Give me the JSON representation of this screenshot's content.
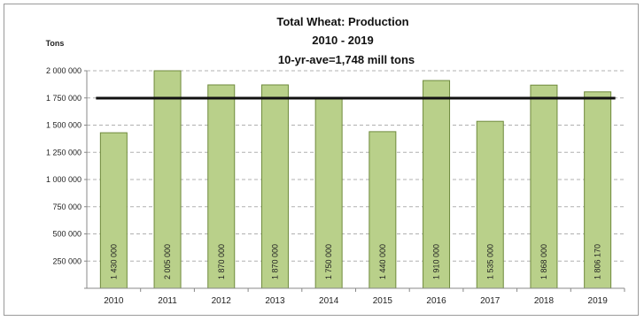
{
  "chart_data": {
    "type": "bar",
    "title": "Total  Wheat: Production",
    "subtitle": "2010 - 2019",
    "annotation": "10-yr-ave=1,748 mill tons",
    "ylabel": "Tons",
    "ylim": [
      0,
      2000000
    ],
    "yticks": [
      0,
      250000,
      500000,
      750000,
      1000000,
      1250000,
      1500000,
      1750000,
      2000000
    ],
    "ytick_labels": [
      "",
      "250 000",
      "500 000",
      "750 000",
      "1 000 000",
      "1 250 000",
      "1 500 000",
      "1 750 000",
      "2 000 000"
    ],
    "categories": [
      "2010",
      "2011",
      "2012",
      "2013",
      "2014",
      "2015",
      "2016",
      "2017",
      "2018",
      "2019"
    ],
    "values": [
      1430000,
      2005000,
      1870000,
      1870000,
      1750000,
      1440000,
      1910000,
      1535000,
      1868000,
      1806170
    ],
    "data_labels": [
      "1 430 000",
      "2 005 000",
      "1 870 000",
      "1 870 000",
      "1 750 000",
      "1 440 000",
      "1 910 000",
      "1 535 000",
      "1 868 000",
      "1 806 170"
    ],
    "average_line": 1748000,
    "bar_color": "#b9d08a",
    "bar_border": "#6f8a3c",
    "average_color": "#111111",
    "grid": true,
    "legend": "none"
  }
}
